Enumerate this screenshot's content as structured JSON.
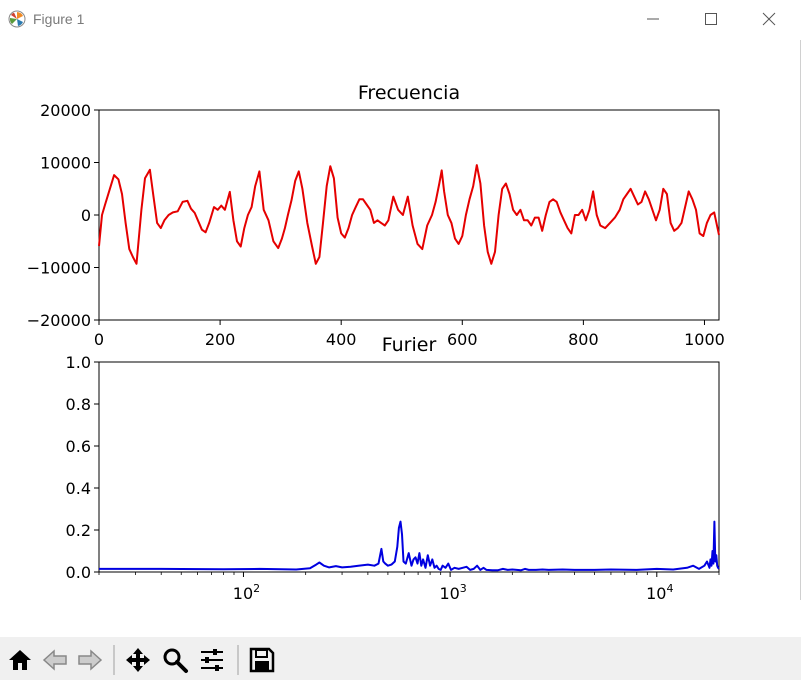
{
  "window": {
    "title": "Figure 1"
  },
  "toolbar": {
    "buttons": [
      {
        "name": "home-icon"
      },
      {
        "name": "back-icon"
      },
      {
        "name": "forward-icon"
      },
      {
        "name": "pan-icon"
      },
      {
        "name": "zoom-icon"
      },
      {
        "name": "configure-subplots-icon"
      },
      {
        "name": "save-icon"
      }
    ]
  },
  "chart_data": [
    {
      "type": "line",
      "title": "Frecuencia",
      "xlabel": "",
      "ylabel": "",
      "xlim": [
        0,
        1024
      ],
      "ylim": [
        -20000,
        20000
      ],
      "xticks": [
        0,
        200,
        400,
        600,
        800,
        1000
      ],
      "xtick_labels": [
        "0",
        "200",
        "400",
        "600",
        "800",
        "1000"
      ],
      "yticks": [
        20000,
        10000,
        0,
        -10000,
        -20000
      ],
      "ytick_labels": [
        "20000",
        "10000",
        "0",
        "−10000",
        "−20000"
      ],
      "grid": false,
      "color": "#e50000",
      "series": [
        {
          "x": [
            0,
            5,
            10,
            18,
            25,
            32,
            38,
            44,
            50,
            56,
            62,
            70,
            76,
            84,
            90,
            96,
            102,
            108,
            115,
            122,
            130,
            138,
            146,
            152,
            158,
            164,
            170,
            176,
            182,
            190,
            196,
            202,
            208,
            216,
            222,
            228,
            234,
            240,
            246,
            252,
            258,
            265,
            272,
            280,
            288,
            296,
            302,
            307,
            312,
            318,
            324,
            330,
            336,
            344,
            352,
            358,
            364,
            370,
            376,
            382,
            388,
            394,
            400,
            406,
            412,
            418,
            424,
            430,
            436,
            442,
            448,
            454,
            460,
            466,
            472,
            478,
            486,
            494,
            502,
            510,
            518,
            526,
            534,
            542,
            550,
            556,
            562,
            566,
            570,
            576,
            582,
            588,
            594,
            600,
            606,
            612,
            618,
            624,
            630,
            636,
            642,
            648,
            654,
            660,
            666,
            672,
            678,
            684,
            690,
            696,
            702,
            708,
            714,
            720,
            726,
            732,
            738,
            744,
            750,
            756,
            762,
            768,
            774,
            780,
            786,
            792,
            798,
            804,
            810,
            816,
            822,
            828,
            836,
            844,
            852,
            860,
            866,
            872,
            878,
            884,
            890,
            896,
            902,
            908,
            914,
            920,
            926,
            932,
            938,
            944,
            950,
            956,
            962,
            968,
            974,
            980,
            986,
            992,
            998,
            1004,
            1010,
            1016,
            1024
          ],
          "y": [
            -5900,
            0,
            2000,
            5000,
            7600,
            6800,
            4000,
            -1500,
            -6500,
            -8000,
            -9300,
            1000,
            7000,
            8600,
            3500,
            -1500,
            -2500,
            -1000,
            0,
            500,
            700,
            2500,
            2700,
            1200,
            400,
            -1200,
            -2800,
            -3300,
            -1500,
            1500,
            1000,
            1800,
            1000,
            4400,
            -1000,
            -5000,
            -6000,
            -2500,
            0,
            1500,
            5500,
            8300,
            1000,
            -1000,
            -5000,
            -6300,
            -4500,
            -2500,
            0,
            2800,
            6500,
            8300,
            5000,
            -1500,
            -6000,
            -9300,
            -8000,
            -1500,
            5500,
            9300,
            7000,
            -500,
            -3500,
            -4300,
            -2500,
            0,
            1500,
            3000,
            3000,
            2000,
            1000,
            -1500,
            -1000,
            -1500,
            -2000,
            -1000,
            3500,
            1000,
            0,
            3500,
            -2000,
            -5500,
            -6500,
            -2000,
            0,
            2500,
            6000,
            8500,
            4500,
            0,
            -1500,
            -4500,
            -5500,
            -4000,
            0,
            3000,
            5500,
            9500,
            6000,
            -2000,
            -7000,
            -9300,
            -7000,
            0,
            5000,
            6000,
            4000,
            1000,
            0,
            1000,
            -1000,
            -1000,
            -2000,
            -500,
            -500,
            -3000,
            0,
            2500,
            3000,
            2500,
            500,
            -1000,
            -2500,
            -3500,
            0,
            0,
            1000,
            -1000,
            1000,
            4500,
            0,
            -2000,
            -2500,
            -1500,
            -500,
            1000,
            3000,
            4000,
            5000,
            3500,
            2000,
            2500,
            4500,
            3000,
            1000,
            -1000,
            1000,
            5000,
            4000,
            -1500,
            -3000,
            -2500,
            -1500,
            1500,
            4500,
            3000,
            1000,
            -3500,
            -4000,
            -1500,
            0,
            500,
            -3800
          ]
        }
      ]
    },
    {
      "type": "line",
      "title": "Furier",
      "xlabel": "",
      "ylabel": "",
      "xscale": "log",
      "xlim": [
        20,
        20000
      ],
      "ylim": [
        0,
        1.0
      ],
      "xticks": [
        100,
        1000,
        10000
      ],
      "xtick_labels": [
        "10",
        "10",
        "10"
      ],
      "xtick_exponents": [
        "2",
        "3",
        "4"
      ],
      "yticks": [
        1.0,
        0.8,
        0.6,
        0.4,
        0.2,
        0.0
      ],
      "ytick_labels": [
        "1.0",
        "0.8",
        "0.6",
        "0.4",
        "0.2",
        "0.0"
      ],
      "grid": false,
      "color": "#0000e0",
      "series": [
        {
          "x": [
            20,
            40,
            80,
            120,
            180,
            210,
            225,
            233,
            245,
            260,
            280,
            300,
            330,
            360,
            400,
            430,
            450,
            465,
            475,
            485,
            500,
            520,
            540,
            555,
            565,
            575,
            585,
            595,
            610,
            630,
            650,
            665,
            680,
            695,
            710,
            725,
            740,
            760,
            780,
            800,
            820,
            840,
            860,
            880,
            900,
            920,
            950,
            980,
            1010,
            1050,
            1100,
            1150,
            1200,
            1250,
            1300,
            1350,
            1400,
            1450,
            1500,
            1600,
            1700,
            1800,
            1900,
            2000,
            2100,
            2200,
            2300,
            2400,
            2600,
            2800,
            3000,
            3500,
            4000,
            5000,
            6000,
            8000,
            10000,
            12000,
            14000,
            15000,
            16000,
            17000,
            17500,
            18000,
            18200,
            18400,
            18600,
            18800,
            19000,
            19200,
            19400,
            19600,
            19800,
            20000
          ],
          "y": [
            0.015,
            0.015,
            0.013,
            0.015,
            0.012,
            0.018,
            0.035,
            0.045,
            0.03,
            0.022,
            0.028,
            0.022,
            0.025,
            0.03,
            0.035,
            0.03,
            0.04,
            0.11,
            0.05,
            0.04,
            0.03,
            0.035,
            0.05,
            0.12,
            0.21,
            0.24,
            0.18,
            0.05,
            0.04,
            0.09,
            0.03,
            0.06,
            0.07,
            0.04,
            0.09,
            0.03,
            0.06,
            0.02,
            0.08,
            0.03,
            0.06,
            0.02,
            0.03,
            0.015,
            0.01,
            0.03,
            0.02,
            0.04,
            0.01,
            0.02,
            0.015,
            0.02,
            0.025,
            0.01,
            0.015,
            0.03,
            0.01,
            0.02,
            0.01,
            0.008,
            0.008,
            0.015,
            0.01,
            0.012,
            0.01,
            0.008,
            0.015,
            0.01,
            0.01,
            0.012,
            0.01,
            0.012,
            0.01,
            0.01,
            0.012,
            0.01,
            0.015,
            0.012,
            0.02,
            0.03,
            0.015,
            0.03,
            0.05,
            0.02,
            0.06,
            0.03,
            0.1,
            0.04,
            0.24,
            0.05,
            0.08,
            0.03,
            0.02,
            0.015
          ]
        }
      ]
    }
  ]
}
